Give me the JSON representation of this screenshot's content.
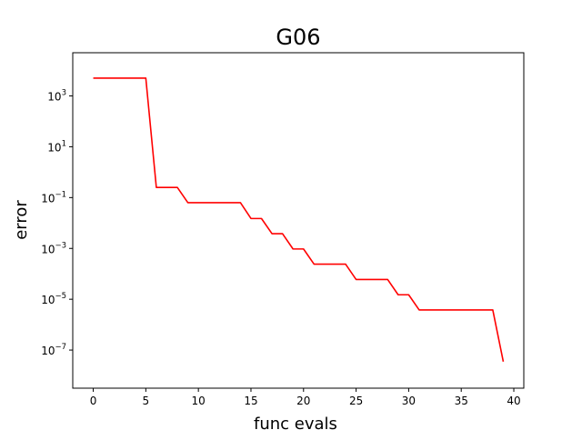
{
  "chart_data": {
    "type": "line",
    "title": "G06",
    "xlabel": "func evals",
    "ylabel": "error",
    "yscale": "log",
    "xlim": [
      -1.95,
      40.95
    ],
    "ylim_log10": [
      -8.5,
      4.7
    ],
    "x_ticks": [
      0,
      5,
      10,
      15,
      20,
      25,
      30,
      35,
      40
    ],
    "y_ticks": [
      {
        "exp": 3,
        "label": "10",
        "sup": "3"
      },
      {
        "exp": 1,
        "label": "10",
        "sup": "1"
      },
      {
        "exp": -1,
        "label": "10",
        "sup": "−1"
      },
      {
        "exp": -3,
        "label": "10",
        "sup": "−3"
      },
      {
        "exp": -5,
        "label": "10",
        "sup": "−5"
      },
      {
        "exp": -7,
        "label": "10",
        "sup": "−7"
      }
    ],
    "grid": false,
    "series": [
      {
        "color": "#ff0000",
        "x": [
          0,
          1,
          2,
          3,
          4,
          5,
          6,
          7,
          8,
          9,
          10,
          11,
          12,
          13,
          14,
          15,
          16,
          17,
          18,
          19,
          20,
          21,
          22,
          23,
          24,
          25,
          26,
          27,
          28,
          29,
          30,
          31,
          32,
          33,
          34,
          35,
          36,
          37,
          38,
          39
        ],
        "y": [
          5000,
          5000,
          5000,
          5000,
          5000,
          5000,
          0.25,
          0.25,
          0.25,
          0.063,
          0.063,
          0.063,
          0.063,
          0.063,
          0.063,
          0.015,
          0.015,
          0.0038,
          0.0038,
          0.00095,
          0.00095,
          0.00024,
          0.00024,
          0.00024,
          0.00024,
          6e-05,
          6e-05,
          6e-05,
          6e-05,
          1.5e-05,
          1.5e-05,
          3.8e-06,
          3.8e-06,
          3.8e-06,
          3.8e-06,
          3.8e-06,
          3.8e-06,
          3.8e-06,
          3.8e-06,
          3.5e-08
        ]
      }
    ]
  }
}
